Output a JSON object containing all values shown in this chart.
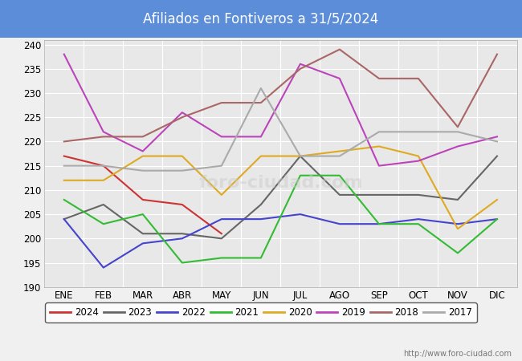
{
  "title": "Afiliados en Fontiveros a 31/5/2024",
  "title_bg": "#5b8dd9",
  "title_color": "white",
  "months": [
    "ENE",
    "FEB",
    "MAR",
    "ABR",
    "MAY",
    "JUN",
    "JUL",
    "AGO",
    "SEP",
    "OCT",
    "NOV",
    "DIC"
  ],
  "ylim": [
    190,
    241
  ],
  "yticks": [
    190,
    195,
    200,
    205,
    210,
    215,
    220,
    225,
    230,
    235,
    240
  ],
  "series": {
    "2024": {
      "color": "#cc3333",
      "values": [
        217,
        215,
        208,
        207,
        201,
        null,
        null,
        null,
        null,
        null,
        null,
        null
      ]
    },
    "2023": {
      "color": "#666666",
      "values": [
        204,
        207,
        201,
        201,
        200,
        207,
        217,
        209,
        209,
        209,
        208,
        217
      ]
    },
    "2022": {
      "color": "#4444cc",
      "values": [
        204,
        194,
        199,
        200,
        204,
        204,
        205,
        203,
        203,
        204,
        203,
        204
      ]
    },
    "2021": {
      "color": "#33bb33",
      "values": [
        208,
        203,
        205,
        195,
        196,
        196,
        213,
        213,
        203,
        203,
        197,
        204
      ]
    },
    "2020": {
      "color": "#ddaa22",
      "values": [
        212,
        212,
        217,
        217,
        209,
        217,
        217,
        218,
        219,
        217,
        202,
        208
      ]
    },
    "2019": {
      "color": "#bb44bb",
      "values": [
        238,
        222,
        218,
        226,
        221,
        221,
        236,
        233,
        215,
        216,
        219,
        221
      ]
    },
    "2018": {
      "color": "#aa6666",
      "values": [
        220,
        221,
        221,
        225,
        228,
        228,
        235,
        239,
        233,
        233,
        223,
        238
      ]
    },
    "2017": {
      "color": "#aaaaaa",
      "values": [
        215,
        215,
        214,
        214,
        215,
        231,
        217,
        217,
        222,
        222,
        222,
        220
      ]
    }
  },
  "watermark": "http://www.foro-ciudad.com",
  "bg_color": "#f0f0f0",
  "plot_bg": "#e8e8e8",
  "grid_color": "#ffffff",
  "legend_order": [
    "2024",
    "2023",
    "2022",
    "2021",
    "2020",
    "2019",
    "2018",
    "2017"
  ]
}
